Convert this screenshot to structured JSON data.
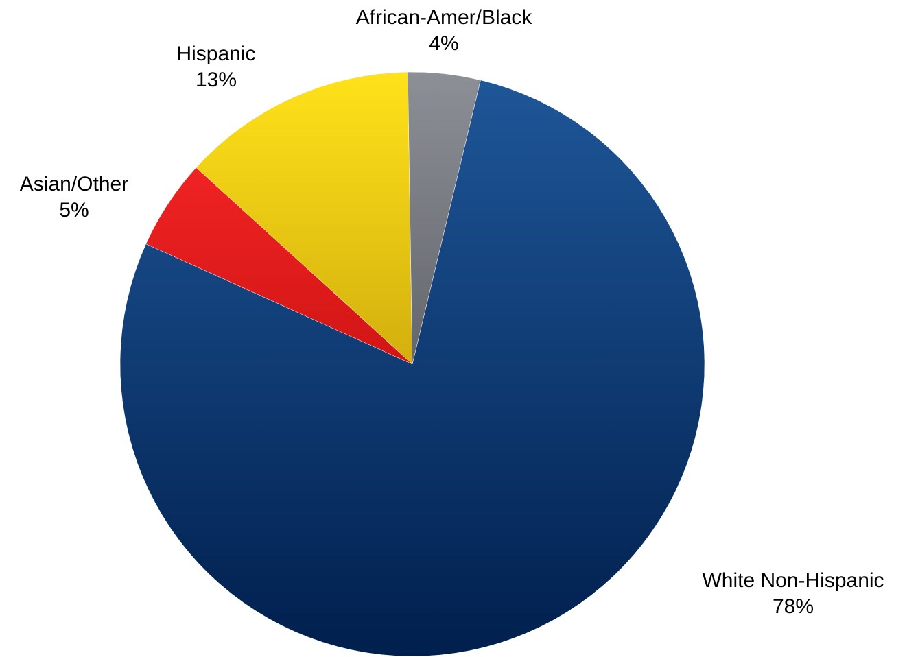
{
  "chart_data": {
    "type": "pie",
    "title": "",
    "slices": [
      {
        "label": "White Non-Hispanic",
        "value": 78,
        "value_label": "78%",
        "color_top": "#1f5799",
        "color_bottom": "#001f4d"
      },
      {
        "label": "Asian/Other",
        "value": 5,
        "value_label": "5%",
        "color_top": "#ff2a2a",
        "color_bottom": "#a30000"
      },
      {
        "label": "Hispanic",
        "value": 13,
        "value_label": "13%",
        "color_top": "#ffe21a",
        "color_bottom": "#a67c00"
      },
      {
        "label": "African-Amer/Black",
        "value": 4,
        "value_label": "4%",
        "color_top": "#8c9096",
        "color_bottom": "#3a3d42"
      }
    ],
    "legend": "none"
  }
}
